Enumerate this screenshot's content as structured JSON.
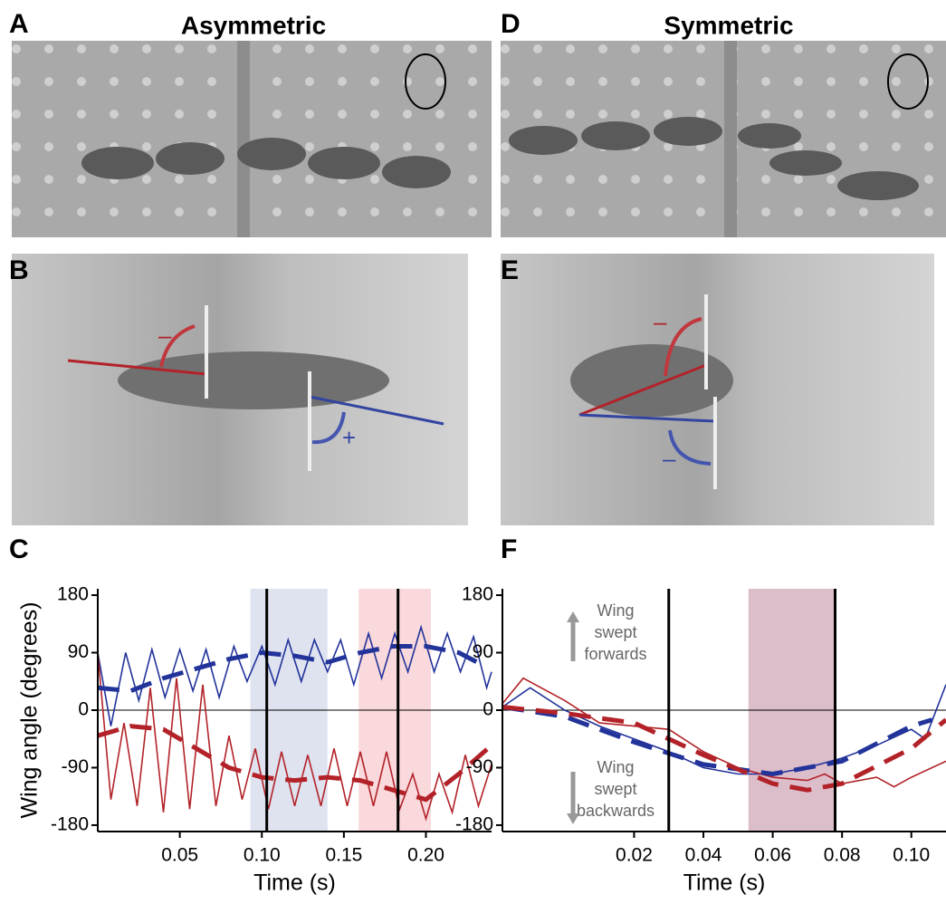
{
  "panel_letters": [
    "A",
    "B",
    "C",
    "D",
    "E",
    "F"
  ],
  "photo_titles": [
    "Asymmetric",
    "Symmetric"
  ],
  "photo_signs": [
    "–",
    "+",
    "–",
    "–"
  ],
  "chart_data": [
    {
      "type": "line",
      "ylabel": "Wing angle (degrees)",
      "xlabel": "Time (s)",
      "xlim": [
        0,
        0.24
      ],
      "xticks": [
        {
          "value": 0.05,
          "label": "0.05"
        },
        {
          "value": 0.1,
          "label": "0.10"
        },
        {
          "value": 0.15,
          "label": "0.15"
        },
        {
          "value": 0.2,
          "label": "0.20"
        }
      ],
      "ylim": [
        -190,
        190
      ],
      "yticks": [
        180,
        90,
        0,
        -90,
        -180
      ],
      "bands": [
        {
          "x": [
            0.093,
            0.14
          ],
          "color": "#dfe2ef"
        },
        {
          "x": [
            0.159,
            0.203
          ],
          "color": "#f9d9dc"
        }
      ],
      "vlines": [
        0.103,
        0.183
      ],
      "series": [
        {
          "color": "#22339a",
          "dashed": false,
          "x": [
            0,
            0.008,
            0.017,
            0.025,
            0.033,
            0.041,
            0.05,
            0.058,
            0.066,
            0.074,
            0.083,
            0.091,
            0.1,
            0.108,
            0.116,
            0.124,
            0.132,
            0.14,
            0.148,
            0.156,
            0.165,
            0.173,
            0.181,
            0.189,
            0.197,
            0.205,
            0.213,
            0.221,
            0.229,
            0.237,
            0.24
          ],
          "values": [
            90,
            -25,
            90,
            15,
            95,
            20,
            95,
            30,
            95,
            20,
            100,
            45,
            100,
            40,
            110,
            45,
            110,
            60,
            110,
            40,
            120,
            50,
            120,
            60,
            130,
            60,
            120,
            60,
            115,
            35,
            60
          ]
        },
        {
          "color": "#b22228",
          "dashed": false,
          "x": [
            0,
            0.008,
            0.016,
            0.024,
            0.032,
            0.04,
            0.048,
            0.056,
            0.064,
            0.072,
            0.08,
            0.088,
            0.096,
            0.104,
            0.112,
            0.12,
            0.128,
            0.136,
            0.144,
            0.152,
            0.16,
            0.168,
            0.176,
            0.184,
            0.192,
            0.2,
            0.208,
            0.216,
            0.224,
            0.232,
            0.24
          ],
          "values": [
            90,
            -140,
            -20,
            -150,
            35,
            -160,
            50,
            -155,
            40,
            -150,
            -40,
            -140,
            -60,
            -155,
            -65,
            -150,
            -70,
            -150,
            -60,
            -150,
            -65,
            -150,
            -65,
            -155,
            -100,
            -170,
            -100,
            -160,
            -70,
            -150,
            -85
          ]
        },
        {
          "color": "#22339a",
          "dashed": true,
          "x": [
            0,
            0.02,
            0.04,
            0.06,
            0.08,
            0.1,
            0.12,
            0.14,
            0.16,
            0.18,
            0.2,
            0.22,
            0.235
          ],
          "values": [
            35,
            30,
            50,
            65,
            80,
            90,
            85,
            75,
            90,
            100,
            100,
            90,
            70
          ]
        },
        {
          "color": "#b22228",
          "dashed": true,
          "x": [
            0,
            0.02,
            0.04,
            0.06,
            0.08,
            0.1,
            0.12,
            0.14,
            0.16,
            0.18,
            0.2,
            0.22,
            0.24
          ],
          "values": [
            -40,
            -25,
            -30,
            -60,
            -90,
            -105,
            -110,
            -105,
            -110,
            -125,
            -140,
            -100,
            -55
          ]
        }
      ]
    },
    {
      "type": "line",
      "xlabel": "Time (s)",
      "xlim": [
        -0.018,
        0.11
      ],
      "xticks": [
        {
          "value": 0.02,
          "label": "0.02"
        },
        {
          "value": 0.04,
          "label": "0.04"
        },
        {
          "value": 0.06,
          "label": "0.06"
        },
        {
          "value": 0.08,
          "label": "0.08"
        },
        {
          "value": 0.1,
          "label": "0.10"
        }
      ],
      "ylim": [
        -190,
        190
      ],
      "yticks": [
        180,
        90,
        0,
        -90,
        -180
      ],
      "bands": [
        {
          "x": [
            0.053,
            0.078
          ],
          "color": "#dcbdca"
        }
      ],
      "vlines": [
        0.03,
        0.078
      ],
      "annotations": [
        [
          "Wing",
          "swept",
          "forwards"
        ],
        [
          "Wing",
          "swept",
          "backwards"
        ]
      ],
      "series": [
        {
          "color": "#22339a",
          "dashed": false,
          "x": [
            -0.018,
            -0.01,
            0,
            0.01,
            0.02,
            0.03,
            0.04,
            0.05,
            0.06,
            0.07,
            0.08,
            0.09,
            0.1,
            0.104,
            0.11
          ],
          "values": [
            5,
            35,
            0,
            -25,
            -45,
            -65,
            -90,
            -100,
            -100,
            -90,
            -75,
            -55,
            -30,
            -45,
            40
          ]
        },
        {
          "color": "#b22228",
          "dashed": false,
          "x": [
            -0.018,
            -0.012,
            0,
            0.01,
            0.02,
            0.03,
            0.04,
            0.05,
            0.06,
            0.07,
            0.075,
            0.08,
            0.09,
            0.095,
            0.1,
            0.11
          ],
          "values": [
            10,
            50,
            15,
            -20,
            -25,
            -30,
            -65,
            -90,
            -105,
            -110,
            -100,
            -115,
            -105,
            -120,
            -105,
            -80
          ]
        },
        {
          "color": "#22339a",
          "dashed": true,
          "x": [
            -0.018,
            0,
            0.02,
            0.04,
            0.06,
            0.08,
            0.1,
            0.106
          ],
          "values": [
            5,
            -10,
            -50,
            -85,
            -100,
            -80,
            -25,
            -15
          ]
        },
        {
          "color": "#b22228",
          "dashed": true,
          "x": [
            -0.018,
            0,
            0.02,
            0.04,
            0.06,
            0.07,
            0.08,
            0.1,
            0.11
          ],
          "values": [
            5,
            -5,
            -20,
            -70,
            -115,
            -125,
            -115,
            -60,
            -15
          ]
        }
      ]
    }
  ]
}
